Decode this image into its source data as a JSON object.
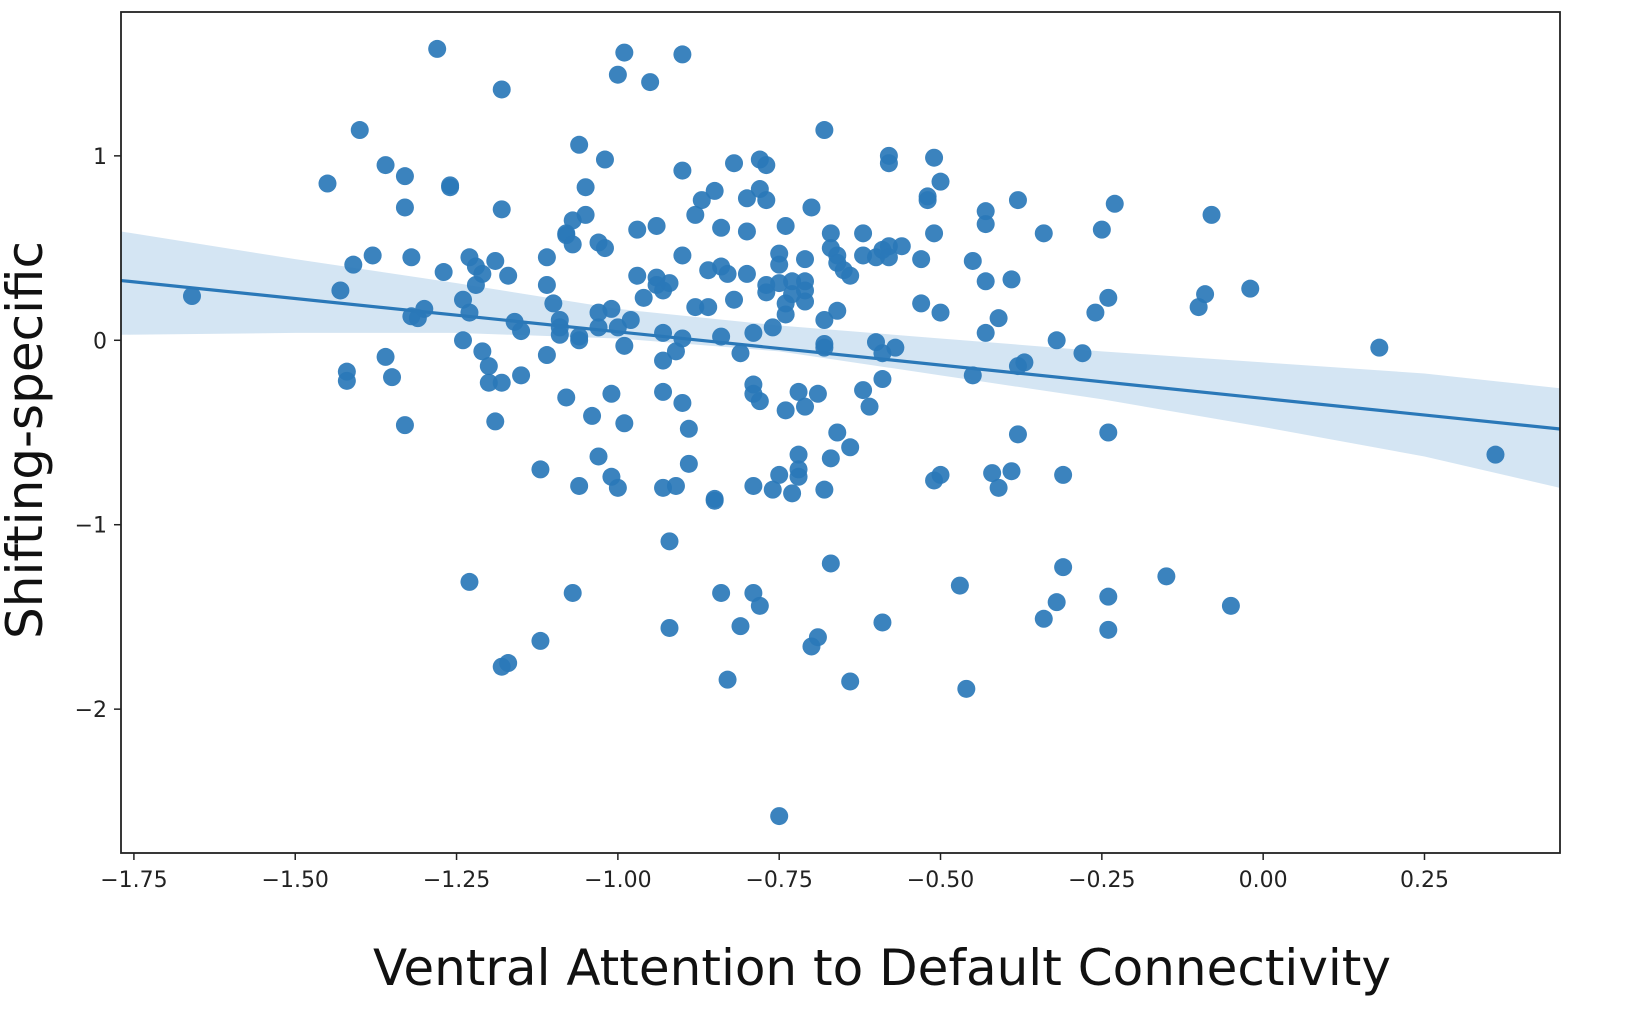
{
  "chart_data": {
    "type": "scatter",
    "title": "",
    "xlabel": "Ventral Attention to Default Connectivity",
    "ylabel": "Shifting-specific",
    "xlim": [
      -1.77,
      0.46
    ],
    "ylim": [
      -2.78,
      1.78
    ],
    "x_ticks": [
      -1.75,
      -1.5,
      -1.25,
      -1.0,
      -0.75,
      -0.5,
      -0.25,
      0.0,
      0.25
    ],
    "x_tick_labels": [
      "−1.75",
      "−1.50",
      "−1.25",
      "−1.00",
      "−0.75",
      "−0.50",
      "−0.25",
      "0.00",
      "0.25"
    ],
    "y_ticks": [
      1,
      0,
      -1,
      -2
    ],
    "y_tick_labels": [
      "1",
      "0",
      "−1",
      "−2"
    ],
    "grid": false,
    "legend": "none",
    "colors": {
      "points": "#2a78b8",
      "line": "#2a78b8",
      "band": "#c6dcef"
    },
    "regression": {
      "slope": -0.361,
      "intercept": -0.315,
      "ci_x": [
        -1.77,
        -1.5,
        -1.25,
        -1.0,
        -0.75,
        -0.5,
        -0.25,
        0.0,
        0.25,
        0.46
      ],
      "ci_lower": [
        0.03,
        0.04,
        0.04,
        0.01,
        -0.06,
        -0.19,
        -0.32,
        -0.47,
        -0.63,
        -0.8
      ],
      "ci_upper": [
        0.59,
        0.44,
        0.31,
        0.17,
        0.08,
        0.01,
        -0.06,
        -0.12,
        -0.18,
        -0.26
      ]
    },
    "points": [
      [
        -1.66,
        0.24
      ],
      [
        -1.45,
        0.85
      ],
      [
        -1.43,
        0.27
      ],
      [
        -1.42,
        -0.17
      ],
      [
        -1.42,
        -0.22
      ],
      [
        -1.41,
        0.41
      ],
      [
        -1.4,
        1.14
      ],
      [
        -1.38,
        0.46
      ],
      [
        -1.36,
        -0.09
      ],
      [
        -1.36,
        0.95
      ],
      [
        -1.35,
        -0.2
      ],
      [
        -1.33,
        0.89
      ],
      [
        -1.33,
        0.72
      ],
      [
        -1.33,
        -0.46
      ],
      [
        -1.32,
        0.45
      ],
      [
        -1.32,
        0.13
      ],
      [
        -1.31,
        0.12
      ],
      [
        -1.3,
        0.17
      ],
      [
        -1.28,
        1.58
      ],
      [
        -1.27,
        0.37
      ],
      [
        -1.26,
        0.83
      ],
      [
        -1.26,
        0.84
      ],
      [
        -1.24,
        0.0
      ],
      [
        -1.24,
        0.22
      ],
      [
        -1.23,
        0.15
      ],
      [
        -1.23,
        0.45
      ],
      [
        -1.22,
        0.4
      ],
      [
        -1.22,
        0.3
      ],
      [
        -1.21,
        0.36
      ],
      [
        -1.23,
        -1.31
      ],
      [
        -1.21,
        -0.06
      ],
      [
        -1.2,
        -0.14
      ],
      [
        -1.2,
        -0.23
      ],
      [
        -1.19,
        0.43
      ],
      [
        -1.19,
        -0.44
      ],
      [
        -1.18,
        1.36
      ],
      [
        -1.18,
        0.71
      ],
      [
        -1.18,
        -0.23
      ],
      [
        -1.17,
        0.35
      ],
      [
        -1.16,
        0.1
      ],
      [
        -1.15,
        -0.19
      ],
      [
        -1.15,
        0.05
      ],
      [
        -1.18,
        -1.77
      ],
      [
        -1.17,
        -1.75
      ],
      [
        -1.12,
        -0.7
      ],
      [
        -1.12,
        -1.63
      ],
      [
        -1.11,
        0.45
      ],
      [
        -1.11,
        0.3
      ],
      [
        -1.11,
        -0.08
      ],
      [
        -1.1,
        0.2
      ],
      [
        -1.09,
        0.11
      ],
      [
        -1.09,
        0.07
      ],
      [
        -1.09,
        0.03
      ],
      [
        -1.08,
        0.58
      ],
      [
        -1.08,
        0.57
      ],
      [
        -1.08,
        -0.31
      ],
      [
        -1.07,
        -1.37
      ],
      [
        -1.07,
        0.65
      ],
      [
        -1.07,
        0.52
      ],
      [
        -1.06,
        0.0
      ],
      [
        -1.06,
        0.02
      ],
      [
        -1.06,
        -0.79
      ],
      [
        -1.06,
        1.06
      ],
      [
        -1.05,
        0.68
      ],
      [
        -1.05,
        0.83
      ],
      [
        -1.04,
        -0.41
      ],
      [
        -1.03,
        0.53
      ],
      [
        -1.03,
        0.07
      ],
      [
        -1.03,
        0.15
      ],
      [
        -1.03,
        -0.63
      ],
      [
        -1.02,
        0.98
      ],
      [
        -1.02,
        0.5
      ],
      [
        -1.01,
        0.17
      ],
      [
        -1.01,
        -0.29
      ],
      [
        -1.01,
        -0.74
      ],
      [
        -1.0,
        -0.8
      ],
      [
        -1.0,
        0.07
      ],
      [
        -1.0,
        1.44
      ],
      [
        -0.99,
        1.56
      ],
      [
        -0.99,
        -0.03
      ],
      [
        -0.99,
        -0.45
      ],
      [
        -0.98,
        0.11
      ],
      [
        -0.97,
        0.35
      ],
      [
        -0.97,
        0.6
      ],
      [
        -0.96,
        0.23
      ],
      [
        -0.95,
        1.4
      ],
      [
        -0.94,
        0.62
      ],
      [
        -0.94,
        0.34
      ],
      [
        -0.94,
        0.3
      ],
      [
        -0.93,
        0.27
      ],
      [
        -0.93,
        0.04
      ],
      [
        -0.93,
        -0.28
      ],
      [
        -0.93,
        -0.8
      ],
      [
        -0.93,
        -0.11
      ],
      [
        -0.92,
        0.31
      ],
      [
        -0.92,
        -1.09
      ],
      [
        -0.92,
        -1.56
      ],
      [
        -0.91,
        -0.06
      ],
      [
        -0.91,
        -0.79
      ],
      [
        -0.9,
        1.55
      ],
      [
        -0.9,
        0.92
      ],
      [
        -0.9,
        0.46
      ],
      [
        -0.9,
        0.01
      ],
      [
        -0.9,
        -0.34
      ],
      [
        -0.89,
        -0.67
      ],
      [
        -0.89,
        -0.48
      ],
      [
        -0.88,
        0.68
      ],
      [
        -0.88,
        0.18
      ],
      [
        -0.87,
        0.76
      ],
      [
        -0.86,
        0.18
      ],
      [
        -0.86,
        0.38
      ],
      [
        -0.85,
        0.81
      ],
      [
        -0.85,
        -0.86
      ],
      [
        -0.85,
        -0.87
      ],
      [
        -0.84,
        0.61
      ],
      [
        -0.84,
        0.02
      ],
      [
        -0.84,
        0.4
      ],
      [
        -0.84,
        -1.37
      ],
      [
        -0.83,
        0.36
      ],
      [
        -0.83,
        -1.84
      ],
      [
        -0.82,
        0.22
      ],
      [
        -0.82,
        0.96
      ],
      [
        -0.81,
        -0.07
      ],
      [
        -0.81,
        -1.55
      ],
      [
        -0.8,
        0.77
      ],
      [
        -0.8,
        0.59
      ],
      [
        -0.8,
        0.36
      ],
      [
        -0.79,
        0.04
      ],
      [
        -0.79,
        -0.24
      ],
      [
        -0.79,
        -0.29
      ],
      [
        -0.79,
        -0.79
      ],
      [
        -0.79,
        -1.37
      ],
      [
        -0.78,
        0.98
      ],
      [
        -0.78,
        0.82
      ],
      [
        -0.78,
        -1.44
      ],
      [
        -0.78,
        -0.33
      ],
      [
        -0.77,
        0.26
      ],
      [
        -0.77,
        0.3
      ],
      [
        -0.77,
        0.76
      ],
      [
        -0.77,
        0.95
      ],
      [
        -0.76,
        0.07
      ],
      [
        -0.76,
        -0.81
      ],
      [
        -0.75,
        0.31
      ],
      [
        -0.75,
        0.47
      ],
      [
        -0.75,
        0.41
      ],
      [
        -0.75,
        -0.73
      ],
      [
        -0.74,
        0.14
      ],
      [
        -0.74,
        0.2
      ],
      [
        -0.74,
        0.62
      ],
      [
        -0.74,
        -0.38
      ],
      [
        -0.73,
        -0.83
      ],
      [
        -0.73,
        0.32
      ],
      [
        -0.73,
        0.25
      ],
      [
        -0.72,
        -0.62
      ],
      [
        -0.72,
        -0.28
      ],
      [
        -0.72,
        -0.7
      ],
      [
        -0.72,
        -0.74
      ],
      [
        -0.71,
        0.27
      ],
      [
        -0.71,
        0.32
      ],
      [
        -0.71,
        0.44
      ],
      [
        -0.71,
        0.21
      ],
      [
        -0.71,
        -0.36
      ],
      [
        -0.7,
        -1.66
      ],
      [
        -0.7,
        0.72
      ],
      [
        -0.69,
        -1.61
      ],
      [
        -0.69,
        -0.29
      ],
      [
        -0.68,
        1.14
      ],
      [
        -0.68,
        0.11
      ],
      [
        -0.68,
        -0.02
      ],
      [
        -0.68,
        -0.04
      ],
      [
        -0.68,
        -0.81
      ],
      [
        -0.67,
        -1.21
      ],
      [
        -0.67,
        0.58
      ],
      [
        -0.67,
        0.5
      ],
      [
        -0.67,
        -0.64
      ],
      [
        -0.66,
        0.42
      ],
      [
        -0.66,
        0.46
      ],
      [
        -0.66,
        -0.5
      ],
      [
        -0.66,
        0.16
      ],
      [
        -0.65,
        0.38
      ],
      [
        -0.64,
        0.35
      ],
      [
        -0.64,
        -0.58
      ],
      [
        -0.64,
        -1.85
      ],
      [
        -0.62,
        0.58
      ],
      [
        -0.62,
        0.46
      ],
      [
        -0.62,
        -0.27
      ],
      [
        -0.61,
        -0.36
      ],
      [
        -0.6,
        0.45
      ],
      [
        -0.6,
        -0.01
      ],
      [
        -0.59,
        0.49
      ],
      [
        -0.59,
        -0.07
      ],
      [
        -0.59,
        -0.21
      ],
      [
        -0.59,
        -1.53
      ],
      [
        -0.58,
        1.0
      ],
      [
        -0.58,
        0.96
      ],
      [
        -0.58,
        0.51
      ],
      [
        -0.58,
        0.45
      ],
      [
        -0.57,
        -0.04
      ],
      [
        -0.56,
        0.51
      ],
      [
        -0.53,
        0.44
      ],
      [
        -0.53,
        0.2
      ],
      [
        -0.52,
        0.76
      ],
      [
        -0.52,
        0.78
      ],
      [
        -0.51,
        0.99
      ],
      [
        -0.51,
        0.58
      ],
      [
        -0.51,
        -0.76
      ],
      [
        -0.5,
        -0.73
      ],
      [
        -0.5,
        0.15
      ],
      [
        -0.5,
        0.86
      ],
      [
        -0.47,
        -1.33
      ],
      [
        -0.46,
        -1.89
      ],
      [
        -0.45,
        0.43
      ],
      [
        -0.45,
        -0.19
      ],
      [
        -0.43,
        0.7
      ],
      [
        -0.43,
        0.63
      ],
      [
        -0.43,
        0.32
      ],
      [
        -0.43,
        0.04
      ],
      [
        -0.42,
        -0.72
      ],
      [
        -0.41,
        -0.8
      ],
      [
        -0.41,
        0.12
      ],
      [
        -0.39,
        -0.71
      ],
      [
        -0.39,
        0.33
      ],
      [
        -0.38,
        0.76
      ],
      [
        -0.38,
        -0.51
      ],
      [
        -0.38,
        -0.14
      ],
      [
        -0.37,
        -0.12
      ],
      [
        -0.34,
        0.58
      ],
      [
        -0.34,
        -1.51
      ],
      [
        -0.32,
        -1.42
      ],
      [
        -0.32,
        0.0
      ],
      [
        -0.31,
        -0.73
      ],
      [
        -0.31,
        -1.23
      ],
      [
        -0.28,
        -0.07
      ],
      [
        -0.26,
        0.15
      ],
      [
        -0.25,
        0.6
      ],
      [
        -0.24,
        -1.39
      ],
      [
        -0.24,
        -1.57
      ],
      [
        -0.24,
        0.23
      ],
      [
        -0.24,
        -0.5
      ],
      [
        -0.23,
        0.74
      ],
      [
        -0.15,
        -1.28
      ],
      [
        -0.1,
        0.18
      ],
      [
        -0.09,
        0.25
      ],
      [
        -0.08,
        0.68
      ],
      [
        -0.05,
        -1.44
      ],
      [
        -0.02,
        0.28
      ],
      [
        0.18,
        -0.04
      ],
      [
        0.36,
        -0.62
      ],
      [
        -0.75,
        -2.58
      ]
    ]
  }
}
